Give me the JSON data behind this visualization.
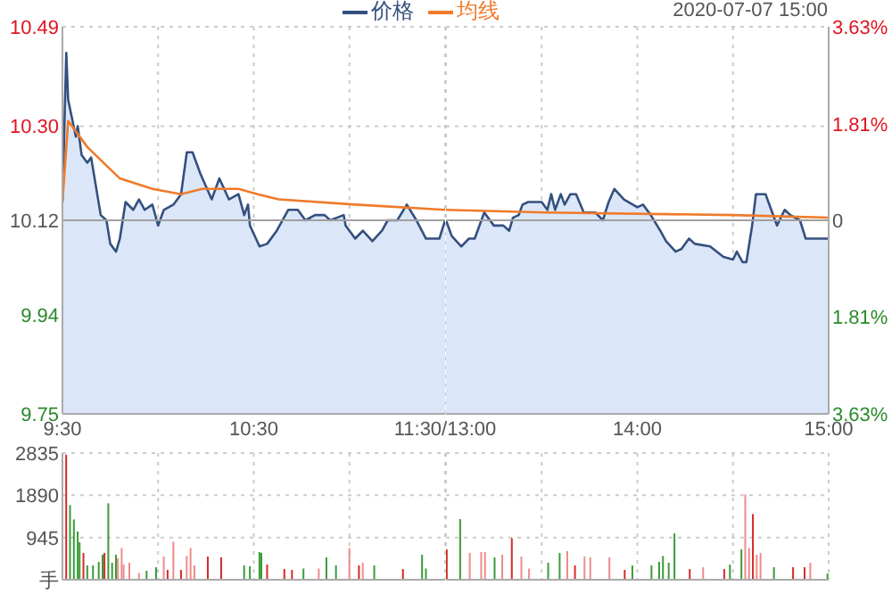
{
  "chart_data": [
    {
      "type": "area",
      "legend": "top right",
      "grid": true,
      "xlim": [
        9.5,
        11.5
      ],
      "xticks": [
        {
          "value": 9.5,
          "label": "9:30"
        },
        {
          "value": 10,
          "label": null
        },
        {
          "value": 10.5,
          "label": "10:30"
        },
        {
          "value": 11,
          "label": null
        },
        {
          "value": 11.5,
          "label": "11:30/13:00"
        }
      ],
      "ylim": [
        9.75,
        10.49
      ],
      "yticks": [
        9.75,
        9.94,
        10.12,
        {
          "value": 10.3,
          "label": "10.30"
        },
        10.49
      ],
      "ref_lines": [
        {
          "axis": "y",
          "value": 10.12,
          "label": null,
          "color": "#a0a0a0"
        }
      ],
      "series": [
        {
          "name": "价格",
          "type": "area",
          "color": "#34507e",
          "x": [
            9.5,
            9.52,
            9.53,
            9.57,
            9.58,
            9.6,
            9.63,
            9.65,
            9.7,
            9.73,
            9.75,
            9.78,
            9.8,
            9.83,
            9.87,
            9.9,
            9.93,
            9.97,
            10,
            10.03,
            10.08,
            10.12,
            10.15,
            10.18,
            10.22,
            10.28,
            10.32,
            10.37,
            10.42,
            10.45,
            10.47,
            10.48,
            10.53,
            10.57,
            10.62,
            10.68,
            10.73,
            10.77,
            10.82,
            10.87,
            10.9,
            10.97,
            10.98,
            11.03,
            11.07,
            11.12,
            11.17,
            11.2,
            11.25,
            11.3,
            11.35,
            11.4,
            11.47,
            11.5
          ],
          "values": [
            10.155,
            10.44,
            10.35,
            10.28,
            10.3,
            10.245,
            10.23,
            10.24,
            10.13,
            10.12,
            10.075,
            10.06,
            10.085,
            10.155,
            10.14,
            10.16,
            10.14,
            10.15,
            10.11,
            10.14,
            10.15,
            10.17,
            10.25,
            10.25,
            10.21,
            10.16,
            10.2,
            10.16,
            10.17,
            10.13,
            10.15,
            10.11,
            10.07,
            10.075,
            10.1,
            10.14,
            10.14,
            10.12,
            10.13,
            10.13,
            10.12,
            10.13,
            10.11,
            10.085,
            10.1,
            10.08,
            10.1,
            10.12,
            10.12,
            10.15,
            10.12,
            10.085,
            10.085,
            10.12
          ]
        },
        {
          "name": "均线",
          "type": "line",
          "color": "#f07a2a",
          "x": [
            9.5,
            9.53,
            9.63,
            9.8,
            9.97,
            10.12,
            10.23,
            10.42,
            10.52,
            10.63,
            11.03,
            11.5
          ],
          "values": [
            10.155,
            10.31,
            10.26,
            10.2,
            10.18,
            10.17,
            10.18,
            10.18,
            10.17,
            10.16,
            10.15,
            10.14
          ]
        }
      ]
    },
    {
      "type": "area",
      "subtitle": "2020-07-07 15:00",
      "grid": true,
      "tick_labels": "x",
      "xlim": [
        13,
        15
      ],
      "xticks": [
        {
          "value": 13,
          "label": null
        },
        {
          "value": 13.5,
          "label": null
        },
        {
          "value": 14,
          "label": "14:00"
        },
        {
          "value": 14.5,
          "label": null
        },
        {
          "value": 15,
          "label": "15:00"
        }
      ],
      "ylim": [
        9.75,
        10.49
      ],
      "yticks": [
        9.75,
        9.94,
        10.12,
        10.3,
        10.49
      ],
      "y2lim": [
        -3.63,
        3.63
      ],
      "y2ticks": [
        {
          "value": -3.63,
          "label": "3.63%"
        },
        {
          "value": -1.81,
          "label": "1.81%"
        },
        {
          "value": 0,
          "label": "0"
        },
        {
          "value": 1.81,
          "label": "1.81%"
        },
        {
          "value": 3.63,
          "label": "3.63%"
        }
      ],
      "ref_lines": [
        {
          "axis": "y",
          "value": 10.12,
          "label": null,
          "color": "#a0a0a0"
        }
      ],
      "series": [
        {
          "type": "area",
          "color": "#34507e",
          "x": [
            13,
            13.03,
            13.08,
            13.12,
            13.15,
            13.2,
            13.25,
            13.3,
            13.33,
            13.35,
            13.38,
            13.4,
            13.43,
            13.5,
            13.53,
            13.55,
            13.57,
            13.6,
            13.62,
            13.65,
            13.68,
            13.72,
            13.78,
            13.82,
            13.85,
            13.88,
            13.93,
            14,
            14.03,
            14.07,
            14.12,
            14.15,
            14.2,
            14.23,
            14.27,
            14.3,
            14.38,
            14.45,
            14.5,
            14.52,
            14.55,
            14.57,
            14.6,
            14.62,
            14.67,
            14.7,
            14.73,
            14.77,
            14.8,
            14.85,
            14.88,
            15
          ],
          "values": [
            10.12,
            10.09,
            10.07,
            10.085,
            10.085,
            10.135,
            10.11,
            10.11,
            10.1,
            10.125,
            10.13,
            10.15,
            10.155,
            10.155,
            10.14,
            10.17,
            10.14,
            10.17,
            10.15,
            10.17,
            10.17,
            10.135,
            10.135,
            10.12,
            10.155,
            10.18,
            10.16,
            10.145,
            10.15,
            10.13,
            10.1,
            10.08,
            10.06,
            10.065,
            10.085,
            10.075,
            10.07,
            10.05,
            10.045,
            10.06,
            10.04,
            10.04,
            10.11,
            10.17,
            10.17,
            10.14,
            10.11,
            10.14,
            10.13,
            10.12,
            10.085,
            10.085
          ]
        },
        {
          "type": "line",
          "color": "#f07a2a",
          "x": [
            13,
            13.52,
            14.5,
            15
          ],
          "values": [
            10.14,
            10.135,
            10.13,
            10.125
          ]
        }
      ]
    },
    {
      "type": "bar",
      "tick_labels": "y",
      "grid": true,
      "xlim": [
        9.5,
        11.5
      ],
      "xticks": [
        {
          "value": 9.5,
          "label": null
        },
        {
          "value": 10,
          "label": null
        },
        {
          "value": 10.5,
          "label": null
        },
        {
          "value": 11,
          "label": null
        },
        {
          "value": 11.5,
          "label": null
        }
      ],
      "ylim": [
        0,
        2835
      ],
      "yticks": [
        {
          "value": 0,
          "label": "手"
        },
        945,
        1890,
        2835
      ],
      "x": [
        9.52,
        9.54,
        9.56,
        9.58,
        9.59,
        9.61,
        9.63,
        9.66,
        9.69,
        9.71,
        9.72,
        9.74,
        9.76,
        9.78,
        9.79,
        9.81,
        9.82,
        9.85,
        9.9,
        9.94,
        9.99,
        10.03,
        10.05,
        10.08,
        10.12,
        10.15,
        10.17,
        10.19,
        10.26,
        10.33,
        10.45,
        10.48,
        10.53,
        10.54,
        10.57,
        10.66,
        10.7,
        10.76,
        10.84,
        10.88,
        10.93,
        11,
        11.05,
        11.07,
        11.13,
        11.28,
        11.38,
        11.4
      ],
      "values": [
        2800,
        1670,
        1350,
        1080,
        840,
        600,
        320,
        320,
        400,
        560,
        600,
        1710,
        380,
        560,
        480,
        710,
        340,
        380,
        150,
        200,
        280,
        520,
        220,
        850,
        220,
        530,
        710,
        320,
        520,
        500,
        320,
        300,
        620,
        600,
        340,
        240,
        220,
        250,
        250,
        500,
        320,
        710,
        320,
        380,
        320,
        240,
        560,
        250
      ],
      "colors": [
        "#d42a2a",
        "#3a9a3a",
        "#3a9a3a",
        "#3a9a3a",
        "#3a9a3a",
        "#d42a2a",
        "#3a9a3a",
        "#3a9a3a",
        "#3a9a3a",
        "#3a9a3a",
        "#d42a2a",
        "#3a9a3a",
        "#3a9a3a",
        "#3a9a3a",
        "#f08a8a",
        "#f08a8a",
        "#f08a8a",
        "#f08a8a",
        "#f08a8a",
        "#3a9a3a",
        "#3a9a3a",
        "#f08a8a",
        "#d42a2a",
        "#f08a8a",
        "#d42a2a",
        "#f08a8a",
        "#f08a8a",
        "#f08a8a",
        "#d42a2a",
        "#d42a2a",
        "#3a9a3a",
        "#3a9a3a",
        "#3a9a3a",
        "#3a9a3a",
        "#d42a2a",
        "#d42a2a",
        "#d42a2a",
        "#3a9a3a",
        "#f08a8a",
        "#3a9a3a",
        "#3a9a3a",
        "#f08a8a",
        "#d42a2a",
        "#f08a8a",
        "#3a9a3a",
        "#d42a2a",
        "#3a9a3a",
        "#3a9a3a"
      ]
    },
    {
      "type": "bar",
      "tick_labels": false,
      "grid": true,
      "xlim": [
        13,
        15
      ],
      "xticks": [
        {
          "value": 13,
          "label": null
        },
        {
          "value": 13.5,
          "label": null
        },
        {
          "value": 14,
          "label": null
        },
        {
          "value": 14.5,
          "label": null
        },
        {
          "value": 15,
          "label": null
        }
      ],
      "ylim": [
        0,
        2835
      ],
      "yticks": [
        0,
        945,
        1890,
        2835
      ],
      "x": [
        13,
        13.07,
        13.12,
        13.18,
        13.2,
        13.25,
        13.29,
        13.34,
        13.39,
        13.43,
        13.53,
        13.59,
        13.63,
        13.67,
        13.72,
        13.75,
        13.85,
        13.93,
        13.97,
        14.07,
        14.11,
        14.13,
        14.16,
        14.19,
        14.27,
        14.34,
        14.45,
        14.48,
        14.54,
        14.56,
        14.58,
        14.6,
        14.62,
        14.64,
        14.71,
        14.81,
        14.87,
        14.9,
        14.99
      ],
      "values": [
        680,
        1360,
        600,
        620,
        620,
        500,
        560,
        930,
        520,
        250,
        380,
        600,
        640,
        320,
        520,
        500,
        500,
        220,
        320,
        320,
        400,
        530,
        380,
        1040,
        240,
        280,
        240,
        340,
        680,
        1910,
        710,
        1470,
        560,
        600,
        280,
        280,
        280,
        380,
        140
      ],
      "colors": [
        "#d42a2a",
        "#3a9a3a",
        "#f08a8a",
        "#f08a8a",
        "#f08a8a",
        "#3a9a3a",
        "#f08a8a",
        "#d42a2a",
        "#f08a8a",
        "#f08a8a",
        "#3a9a3a",
        "#3a9a3a",
        "#f08a8a",
        "#d42a2a",
        "#f08a8a",
        "#f08a8a",
        "#f08a8a",
        "#d42a2a",
        "#3a9a3a",
        "#3a9a3a",
        "#3a9a3a",
        "#3a9a3a",
        "#3a9a3a",
        "#3a9a3a",
        "#d42a2a",
        "#f08a8a",
        "#d42a2a",
        "#3a9a3a",
        "#3a9a3a",
        "#f08a8a",
        "#f08a8a",
        "#d42a2a",
        "#f08a8a",
        "#f08a8a",
        "#3a9a3a",
        "#d42a2a",
        "#d42a2a",
        "#f08a8a",
        "#3a9a3a"
      ]
    }
  ]
}
